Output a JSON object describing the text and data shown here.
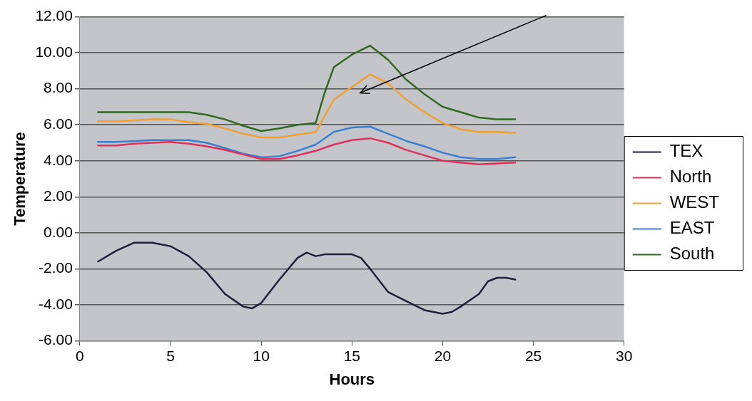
{
  "chart_data": {
    "type": "line",
    "xlabel": "Hours",
    "ylabel": "Temperature",
    "xlim": [
      0,
      30
    ],
    "xticks": [
      0,
      5,
      10,
      15,
      20,
      25,
      30
    ],
    "ylim": [
      -6,
      12
    ],
    "yticks": [
      {
        "value": -6,
        "label": "-6.00"
      },
      {
        "value": -4,
        "label": "-4.00"
      },
      {
        "value": -2,
        "label": "-2.00"
      },
      {
        "value": 0,
        "label": "0.00"
      },
      {
        "value": 2,
        "label": "2.00"
      },
      {
        "value": 4,
        "label": "4.00"
      },
      {
        "value": 6,
        "label": "6.00"
      },
      {
        "value": 8,
        "label": "8.00"
      },
      {
        "value": 10,
        "label": "10.00"
      },
      {
        "value": 12,
        "label": "12.00"
      }
    ],
    "grid": "y",
    "legend": "right",
    "marker": "none",
    "line_style": "solid",
    "series": [
      {
        "name": "TEX",
        "color": "#1f1f3f",
        "x": [
          1,
          2,
          3,
          4,
          5,
          6,
          7,
          8,
          9,
          9.5,
          10,
          11,
          12,
          12.5,
          13,
          13.5,
          15,
          15.5,
          16,
          17,
          18,
          19,
          20,
          20.5,
          21,
          22,
          22.5,
          23,
          23.5,
          24
        ],
        "values": [
          -1.6,
          -1.0,
          -0.55,
          -0.55,
          -0.75,
          -1.3,
          -2.2,
          -3.4,
          -4.1,
          -4.2,
          -3.9,
          -2.6,
          -1.4,
          -1.1,
          -1.3,
          -1.2,
          -1.2,
          -1.4,
          -2.0,
          -3.3,
          -3.8,
          -4.3,
          -4.5,
          -4.4,
          -4.1,
          -3.4,
          -2.7,
          -2.5,
          -2.5,
          -2.6
        ]
      },
      {
        "name": "North",
        "color": "#e0305a",
        "x": [
          1,
          2,
          3,
          4,
          5,
          6,
          7,
          8,
          9,
          10,
          11,
          12,
          13,
          14,
          15,
          16,
          17,
          18,
          19,
          20,
          21,
          22,
          23,
          24
        ],
        "values": [
          4.85,
          4.85,
          4.95,
          5.0,
          5.05,
          4.95,
          4.8,
          4.6,
          4.35,
          4.1,
          4.1,
          4.3,
          4.55,
          4.9,
          5.15,
          5.25,
          5.0,
          4.6,
          4.3,
          4.0,
          3.9,
          3.8,
          3.85,
          3.9
        ]
      },
      {
        "name": "WEST",
        "color": "#f0a030",
        "x": [
          1,
          2,
          3,
          4,
          5,
          6,
          7,
          8,
          9,
          10,
          11,
          12,
          13,
          13.5,
          14,
          15,
          16,
          17,
          18,
          19,
          20,
          21,
          22,
          23,
          24
        ],
        "values": [
          6.2,
          6.2,
          6.25,
          6.3,
          6.3,
          6.15,
          6.05,
          5.8,
          5.5,
          5.3,
          5.3,
          5.45,
          5.6,
          6.5,
          7.4,
          8.1,
          8.8,
          8.3,
          7.4,
          6.7,
          6.1,
          5.75,
          5.6,
          5.6,
          5.55
        ]
      },
      {
        "name": "EAST",
        "color": "#3a7fd0",
        "x": [
          1,
          2,
          3,
          4,
          5,
          6,
          7,
          8,
          9,
          10,
          11,
          12,
          13,
          14,
          15,
          16,
          17,
          18,
          19,
          20,
          21,
          22,
          23,
          24
        ],
        "values": [
          5.05,
          5.05,
          5.1,
          5.15,
          5.15,
          5.15,
          5.0,
          4.7,
          4.4,
          4.2,
          4.25,
          4.55,
          4.9,
          5.6,
          5.85,
          5.9,
          5.5,
          5.1,
          4.8,
          4.45,
          4.2,
          4.1,
          4.1,
          4.2
        ]
      },
      {
        "name": "South",
        "color": "#2e6b1e",
        "x": [
          1,
          3,
          6,
          7,
          8,
          9,
          10,
          11,
          12,
          13,
          13.5,
          14,
          15,
          16,
          17,
          18,
          19,
          20,
          21,
          22,
          23,
          24
        ],
        "values": [
          6.7,
          6.7,
          6.7,
          6.55,
          6.3,
          5.95,
          5.65,
          5.8,
          6.0,
          6.1,
          7.8,
          9.2,
          9.9,
          10.4,
          9.6,
          8.5,
          7.7,
          7.0,
          6.7,
          6.4,
          6.3,
          6.3
        ]
      }
    ]
  }
}
